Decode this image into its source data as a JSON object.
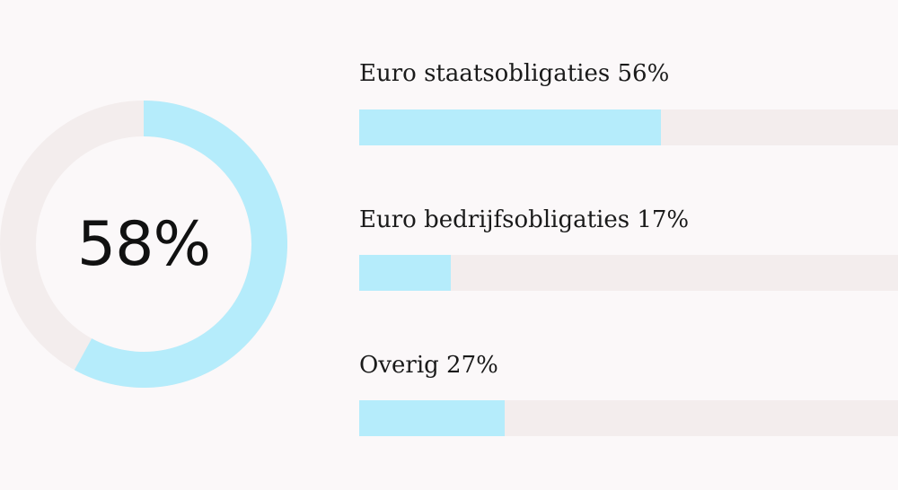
{
  "colors": {
    "accent": "#b5ecfb",
    "track": "#f3eded",
    "background": "#fbf8f9"
  },
  "chart_data": [
    {
      "type": "pie",
      "variant": "donut",
      "center_label": "58%",
      "values": [
        58,
        42
      ],
      "colors": [
        "#b5ecfb",
        "#f3eded"
      ]
    },
    {
      "type": "bar",
      "orientation": "horizontal",
      "categories": [
        "Euro staatsobligaties",
        "Euro bedrijfsobligaties",
        "Overig"
      ],
      "values": [
        56,
        17,
        27
      ],
      "labels": [
        "Euro staatsobligaties 56%",
        "Euro bedrijfsobligaties 17%",
        "Overig 27%"
      ],
      "xlim": [
        0,
        100
      ]
    }
  ]
}
